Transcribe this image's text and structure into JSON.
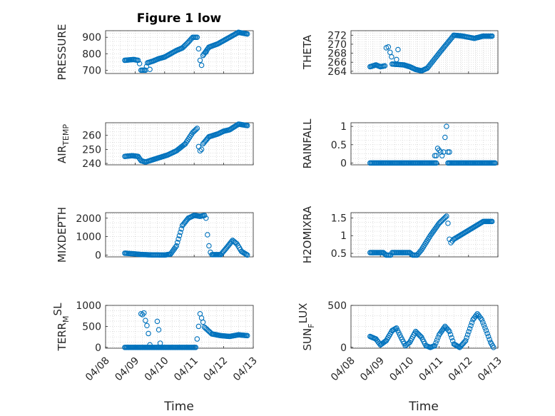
{
  "figure": {
    "title": "Figure 1 low",
    "xlabel": "Time",
    "date_ticks": [
      "04/08",
      "04/09",
      "04/10",
      "04/11",
      "04/12",
      "04/13"
    ],
    "marker_color": "#0072bd"
  },
  "chart_data": [
    {
      "type": "scatter",
      "name": "pressure",
      "ylabel": "PRESSURE",
      "ylabel_sub": "",
      "ylim": [
        680,
        940
      ],
      "yticks": [
        700,
        800,
        900
      ],
      "keypoints": [
        [
          0.65,
          760
        ],
        [
          0.95,
          765
        ],
        [
          1.1,
          760
        ],
        [
          1.15,
          740
        ],
        [
          1.2,
          700
        ],
        [
          1.35,
          700
        ],
        [
          1.42,
          745
        ],
        [
          1.6,
          755
        ],
        [
          1.8,
          770
        ],
        [
          2.0,
          780
        ],
        [
          2.2,
          800
        ],
        [
          2.4,
          820
        ],
        [
          2.6,
          835
        ],
        [
          2.8,
          870
        ],
        [
          2.95,
          900
        ],
        [
          3.1,
          900
        ]
      ],
      "extra_points": [
        [
          1.5,
          705
        ],
        [
          3.15,
          830
        ],
        [
          3.2,
          760
        ],
        [
          3.25,
          730
        ],
        [
          3.3,
          790
        ],
        [
          3.4,
          810
        ]
      ],
      "keypoints2": [
        [
          3.3,
          790
        ],
        [
          3.5,
          840
        ],
        [
          3.8,
          860
        ],
        [
          4.0,
          880
        ],
        [
          4.2,
          900
        ],
        [
          4.5,
          930
        ],
        [
          4.8,
          920
        ]
      ]
    },
    {
      "type": "scatter",
      "name": "theta",
      "ylabel": "THETA",
      "ylabel_sub": "",
      "ylim": [
        263.5,
        273
      ],
      "yticks": [
        264,
        266,
        268,
        270,
        272
      ],
      "keypoints": [
        [
          0.65,
          265
        ],
        [
          0.85,
          265.4
        ],
        [
          1.0,
          265
        ],
        [
          1.15,
          265.2
        ]
      ],
      "extra_points": [
        [
          1.2,
          269.2
        ],
        [
          1.27,
          269.4
        ],
        [
          1.33,
          268.2
        ],
        [
          1.38,
          267.2
        ],
        [
          1.6,
          268.8
        ],
        [
          1.55,
          266.6
        ]
      ],
      "keypoints2": [
        [
          1.4,
          265.6
        ],
        [
          1.8,
          265.4
        ],
        [
          2.0,
          265
        ],
        [
          2.2,
          264.4
        ],
        [
          2.4,
          264.1
        ],
        [
          2.6,
          264.7
        ],
        [
          3.0,
          268
        ],
        [
          3.5,
          272
        ],
        [
          3.8,
          271.8
        ],
        [
          4.2,
          271.3
        ],
        [
          4.5,
          271.8
        ],
        [
          4.8,
          271.8
        ]
      ]
    },
    {
      "type": "scatter",
      "name": "air_temp",
      "ylabel": "AIR",
      "ylabel_sub": "TEMP",
      "ylim": [
        239,
        269
      ],
      "yticks": [
        240,
        250,
        260
      ],
      "keypoints": [
        [
          0.65,
          245
        ],
        [
          0.9,
          245.5
        ],
        [
          1.1,
          245
        ],
        [
          1.2,
          242
        ],
        [
          1.35,
          241
        ],
        [
          1.5,
          242
        ],
        [
          1.8,
          244
        ],
        [
          2.1,
          246
        ],
        [
          2.4,
          249
        ],
        [
          2.7,
          254
        ],
        [
          2.95,
          262
        ],
        [
          3.1,
          265
        ]
      ],
      "extra_points": [
        [
          3.15,
          252
        ],
        [
          3.2,
          249
        ],
        [
          3.25,
          250
        ]
      ],
      "keypoints2": [
        [
          3.3,
          254
        ],
        [
          3.5,
          259
        ],
        [
          3.8,
          261
        ],
        [
          4.0,
          263
        ],
        [
          4.2,
          264
        ],
        [
          4.5,
          268
        ],
        [
          4.8,
          267
        ]
      ]
    },
    {
      "type": "scatter",
      "name": "rainfall",
      "ylabel": "RAINFALL",
      "ylabel_sub": "",
      "ylim": [
        -0.05,
        1.1
      ],
      "yticks": [
        0,
        0.5,
        1
      ],
      "keypoints": [
        [
          0.65,
          0
        ],
        [
          2.9,
          0
        ]
      ],
      "extra_points": [
        [
          2.85,
          0.2
        ],
        [
          2.9,
          0.2
        ],
        [
          2.95,
          0.4
        ],
        [
          3.0,
          0.35
        ],
        [
          3.05,
          0.3
        ],
        [
          3.1,
          0.2
        ],
        [
          3.15,
          0.3
        ],
        [
          3.2,
          0.7
        ],
        [
          3.25,
          1.0
        ],
        [
          3.3,
          0.3
        ],
        [
          3.35,
          0.3
        ]
      ],
      "keypoints2": [
        [
          3.3,
          0
        ],
        [
          4.9,
          0
        ]
      ]
    },
    {
      "type": "scatter",
      "name": "mixdepth",
      "ylabel": "MIXDEPTH",
      "ylabel_sub": "",
      "ylim": [
        -100,
        2300
      ],
      "yticks": [
        0,
        1000,
        2000
      ],
      "keypoints": [
        [
          0.65,
          100
        ],
        [
          1.0,
          60
        ],
        [
          1.2,
          30
        ],
        [
          1.5,
          10
        ],
        [
          2.0,
          0
        ],
        [
          2.2,
          50
        ],
        [
          2.4,
          500
        ],
        [
          2.6,
          1600
        ],
        [
          2.8,
          2000
        ],
        [
          3.0,
          2150
        ],
        [
          3.2,
          2100
        ],
        [
          3.35,
          2150
        ]
      ],
      "extra_points": [
        [
          3.4,
          2000
        ],
        [
          3.45,
          1100
        ],
        [
          3.5,
          500
        ],
        [
          3.55,
          150
        ]
      ],
      "keypoints2": [
        [
          3.6,
          20
        ],
        [
          3.9,
          20
        ],
        [
          4.1,
          400
        ],
        [
          4.3,
          800
        ],
        [
          4.45,
          600
        ],
        [
          4.6,
          200
        ],
        [
          4.8,
          0
        ]
      ]
    },
    {
      "type": "scatter",
      "name": "h2omixra",
      "ylabel": "H2OMIXRA",
      "ylabel_sub": "",
      "ylim": [
        0.4,
        1.65
      ],
      "yticks": [
        0.5,
        1,
        1.5
      ],
      "keypoints": [
        [
          0.65,
          0.52
        ],
        [
          1.1,
          0.52
        ],
        [
          1.2,
          0.45
        ],
        [
          1.35,
          0.45
        ],
        [
          1.4,
          0.52
        ],
        [
          2.0,
          0.52
        ],
        [
          2.1,
          0.45
        ],
        [
          2.25,
          0.45
        ],
        [
          2.4,
          0.6
        ],
        [
          2.7,
          1.0
        ],
        [
          3.0,
          1.35
        ],
        [
          3.25,
          1.55
        ]
      ],
      "extra_points": [
        [
          3.3,
          1.35
        ],
        [
          3.35,
          0.9
        ],
        [
          3.4,
          0.8
        ],
        [
          3.45,
          0.85
        ]
      ],
      "keypoints2": [
        [
          3.5,
          0.9
        ],
        [
          3.7,
          1.0
        ],
        [
          3.9,
          1.1
        ],
        [
          4.1,
          1.2
        ],
        [
          4.3,
          1.3
        ],
        [
          4.5,
          1.4
        ],
        [
          4.8,
          1.4
        ]
      ]
    },
    {
      "type": "scatter",
      "name": "terr_msl",
      "ylabel": "TERR",
      "ylabel_sub": "M",
      "ylabel_sup": "SL",
      "ylim": [
        -20,
        1000
      ],
      "yticks": [
        0,
        500,
        1000
      ],
      "keypoints": [
        [
          0.65,
          0
        ],
        [
          3.05,
          0
        ]
      ],
      "extra_points": [
        [
          1.2,
          800
        ],
        [
          1.25,
          780
        ],
        [
          1.3,
          820
        ],
        [
          1.35,
          640
        ],
        [
          1.4,
          520
        ],
        [
          1.45,
          330
        ],
        [
          1.5,
          60
        ],
        [
          1.75,
          620
        ],
        [
          1.8,
          420
        ],
        [
          1.85,
          100
        ],
        [
          3.1,
          200
        ],
        [
          3.15,
          500
        ],
        [
          3.2,
          800
        ],
        [
          3.25,
          700
        ],
        [
          3.3,
          600
        ]
      ],
      "keypoints2": [
        [
          3.35,
          480
        ],
        [
          3.6,
          320
        ],
        [
          3.9,
          280
        ],
        [
          4.2,
          260
        ],
        [
          4.5,
          300
        ],
        [
          4.8,
          280
        ]
      ]
    },
    {
      "type": "scatter",
      "name": "sun_flux",
      "ylabel": "SUN",
      "ylabel_sub": "F",
      "ylabel_sup": "LUX",
      "ylim": [
        -10,
        500
      ],
      "yticks": [
        0,
        500
      ],
      "keypoints": [
        [
          0.65,
          130
        ],
        [
          0.85,
          100
        ],
        [
          1.0,
          30
        ],
        [
          1.2,
          80
        ],
        [
          1.4,
          200
        ],
        [
          1.55,
          230
        ],
        [
          1.7,
          120
        ],
        [
          1.85,
          20
        ],
        [
          2.0,
          60
        ],
        [
          2.2,
          190
        ],
        [
          2.4,
          120
        ],
        [
          2.55,
          20
        ],
        [
          2.7,
          0
        ],
        [
          2.85,
          20
        ],
        [
          3.0,
          150
        ],
        [
          3.2,
          250
        ],
        [
          3.35,
          190
        ],
        [
          3.5,
          40
        ],
        [
          3.7,
          0
        ],
        [
          3.9,
          80
        ],
        [
          4.15,
          330
        ],
        [
          4.3,
          400
        ],
        [
          4.45,
          330
        ],
        [
          4.6,
          200
        ],
        [
          4.75,
          60
        ],
        [
          4.85,
          0
        ]
      ],
      "extra_points": [],
      "keypoints2": []
    }
  ]
}
